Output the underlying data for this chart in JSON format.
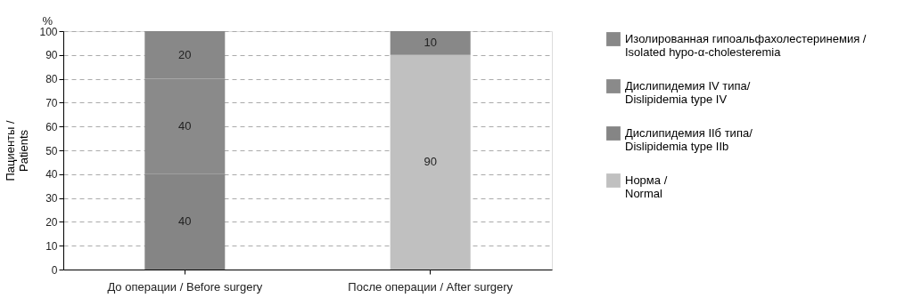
{
  "chart_data": {
    "type": "bar",
    "stacked": true,
    "categories": [
      "До операции / Before surgery",
      "После операции / After surgery"
    ],
    "ylabel": "Пациенты / Patients",
    "annotations": [
      "%"
    ],
    "series": [
      {
        "name": "Норма / Normal",
        "color": "#c0c0c0",
        "values": [
          0,
          90
        ],
        "value_labels": [
          null,
          "90"
        ]
      },
      {
        "name": "Дислипидемия IIб типа/ Dislipidemia type IIb",
        "color": "#858585",
        "values": [
          40,
          0
        ],
        "value_labels": [
          "40",
          null
        ]
      },
      {
        "name": "Дислипидемия IV типа/ Dislipidemia type IV",
        "color": "#8a8a8a",
        "values": [
          40,
          0
        ],
        "value_labels": [
          "40",
          null
        ]
      },
      {
        "name": "Изолированная гипоальфахолестеринемия / Isolated hypo-α-cholesteremia",
        "color": "#888888",
        "values": [
          20,
          10
        ],
        "value_labels": [
          "20",
          "10"
        ]
      }
    ],
    "ylim": [
      0,
      100
    ],
    "yticks": [
      0,
      10,
      20,
      30,
      40,
      50,
      60,
      70,
      80,
      90,
      100
    ],
    "grid": "y",
    "legend": "right"
  }
}
